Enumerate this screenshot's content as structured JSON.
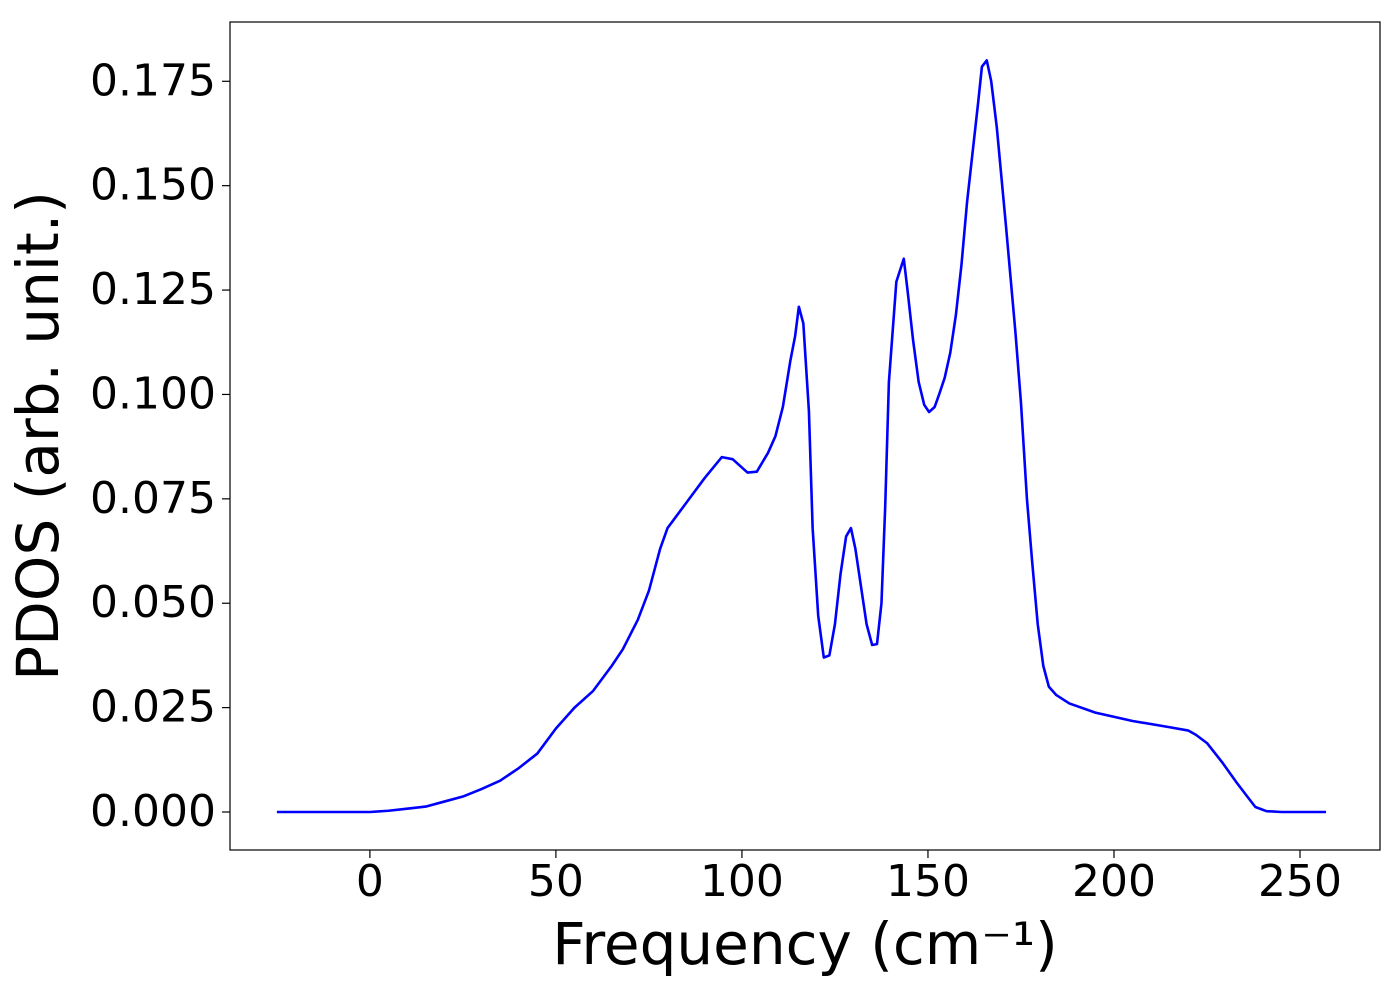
{
  "chart_data": {
    "type": "line",
    "xlabel": "Frequency (cm⁻¹)",
    "ylabel": "PDOS (arb. unit.)",
    "color": "#0000ff",
    "x": [
      -25,
      0,
      5,
      10,
      15,
      20,
      25,
      30,
      35,
      40,
      45,
      50,
      55,
      60,
      65,
      68,
      72,
      75,
      78,
      80,
      85,
      90,
      94.6,
      97.5,
      101.5,
      104,
      107,
      109,
      111,
      113,
      114.3,
      115.3,
      116.5,
      118,
      119,
      120.5,
      122,
      123.5,
      125,
      126.5,
      128,
      129.3,
      130.5,
      133.5,
      135,
      136.3,
      137.5,
      138.5,
      139.5,
      141.5,
      143.5,
      144.5,
      146,
      147.5,
      149,
      150.3,
      151.8,
      153,
      154.5,
      156,
      157.5,
      159,
      160.5,
      162,
      163.5,
      164.5,
      165.8,
      167,
      168.5,
      171,
      173.5,
      175,
      176.6,
      178,
      179.5,
      181,
      182.5,
      184.5,
      188,
      195,
      205,
      215,
      220,
      222,
      225,
      229,
      233,
      236,
      238,
      241,
      245,
      257
    ],
    "values": [
      0,
      0,
      0.0003,
      0.0008,
      0.0013,
      0.0025,
      0.0037,
      0.0055,
      0.0075,
      0.0105,
      0.014,
      0.02,
      0.025,
      0.029,
      0.035,
      0.039,
      0.046,
      0.053,
      0.063,
      0.068,
      0.074,
      0.08,
      0.085,
      0.0845,
      0.0813,
      0.0815,
      0.086,
      0.09,
      0.097,
      0.108,
      0.114,
      0.121,
      0.117,
      0.096,
      0.068,
      0.047,
      0.037,
      0.0375,
      0.045,
      0.057,
      0.066,
      0.068,
      0.063,
      0.045,
      0.04,
      0.0402,
      0.05,
      0.073,
      0.103,
      0.127,
      0.1325,
      0.125,
      0.113,
      0.103,
      0.0975,
      0.0958,
      0.097,
      0.1,
      0.104,
      0.11,
      0.119,
      0.131,
      0.146,
      0.158,
      0.17,
      0.1785,
      0.18,
      0.175,
      0.164,
      0.14,
      0.115,
      0.098,
      0.075,
      0.06,
      0.045,
      0.035,
      0.03,
      0.028,
      0.026,
      0.0238,
      0.0218,
      0.0203,
      0.0195,
      0.0185,
      0.0165,
      0.012,
      0.007,
      0.0035,
      0.0012,
      0.0002,
      0,
      0
    ],
    "xlim": [
      -37.6,
      271.5
    ],
    "ylim": [
      -0.0091,
      0.1892
    ],
    "xticks": [
      0,
      50,
      100,
      150,
      200,
      250
    ],
    "yticks": [
      {
        "value": 0,
        "label": "0.000"
      },
      {
        "value": 0.025,
        "label": "0.025"
      },
      {
        "value": 0.05,
        "label": "0.050"
      },
      {
        "value": 0.075,
        "label": "0.075"
      },
      {
        "value": 0.1,
        "label": "0.100"
      },
      {
        "value": 0.125,
        "label": "0.125"
      },
      {
        "value": 0.15,
        "label": "0.150"
      },
      {
        "value": 0.175,
        "label": "0.175"
      }
    ],
    "grid": false
  }
}
